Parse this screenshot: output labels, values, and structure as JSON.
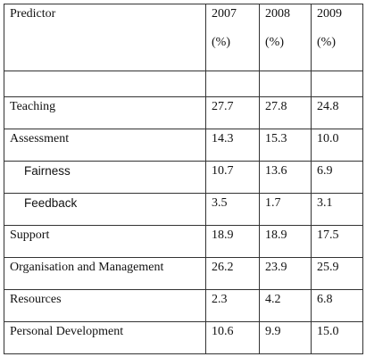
{
  "table": {
    "header": {
      "predictor": "Predictor",
      "years": [
        "2007",
        "2008",
        "2009"
      ],
      "unit": "(%)"
    },
    "rows": [
      {
        "label": "Teaching",
        "values": [
          "27.7",
          "27.8",
          "24.8"
        ]
      },
      {
        "label": "Assessment",
        "values": [
          "14.3",
          "15.3",
          "10.0"
        ]
      },
      {
        "label": "Fairness",
        "values": [
          "10.7",
          "13.6",
          "6.9"
        ],
        "sub": true
      },
      {
        "label": "Feedback",
        "values": [
          "3.5",
          "1.7",
          "3.1"
        ],
        "sub": true
      },
      {
        "label": "Support",
        "values": [
          "18.9",
          "18.9",
          "17.5"
        ]
      },
      {
        "label": "Organisation and Management",
        "values": [
          "26.2",
          "23.9",
          "25.9"
        ]
      },
      {
        "label": "Resources",
        "values": [
          "2.3",
          "4.2",
          "6.8"
        ]
      },
      {
        "label": "Personal Development",
        "values": [
          "10.6",
          "9.9",
          "15.0"
        ]
      }
    ]
  }
}
